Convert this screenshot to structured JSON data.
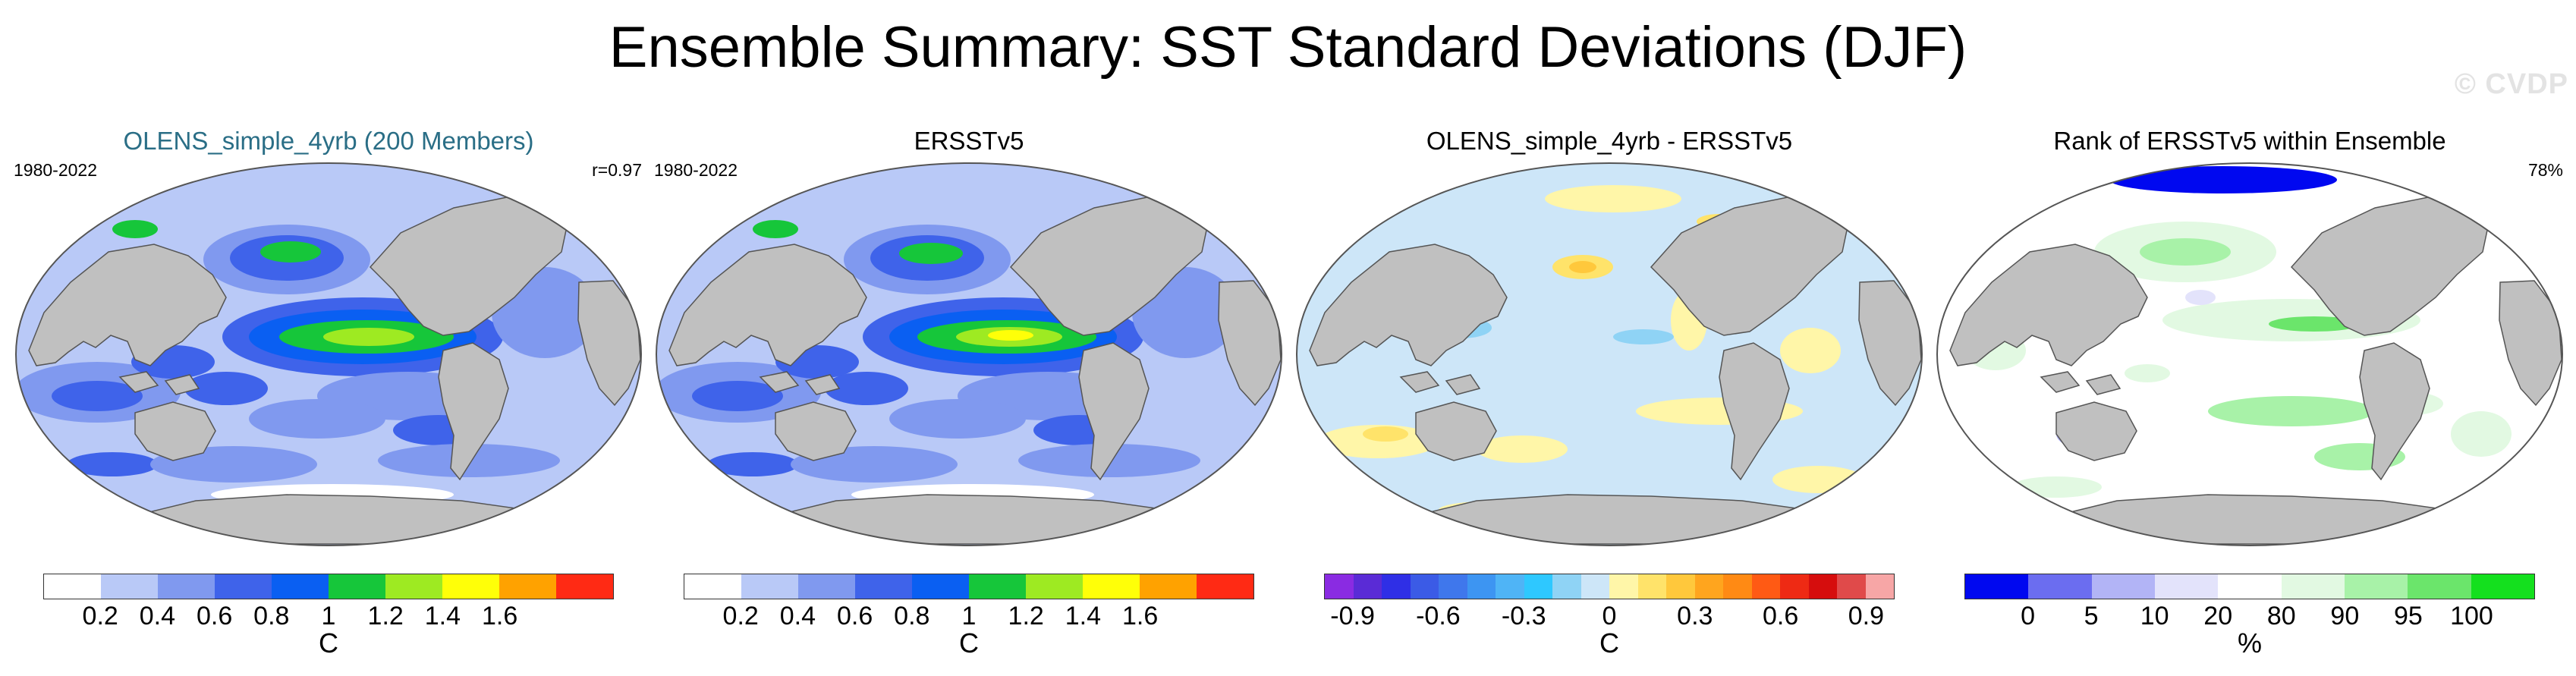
{
  "title": "Ensemble Summary: SST Standard Deviations (DJF)",
  "watermark": "© CVDP",
  "panels": [
    {
      "title": "OLENS_simple_4yrb (200 Members)",
      "title_color": "#2a6e86",
      "left_label": "1980-2022",
      "right_label": "r=0.97",
      "ocean_base": "#b9c9f7",
      "colorbar": {
        "colors": [
          "#ffffff",
          "#b9c9f7",
          "#8099ef",
          "#3f63ea",
          "#0a5ff2",
          "#16c63a",
          "#9eea22",
          "#ffff08",
          "#ffa200",
          "#ff2a14"
        ],
        "ticks": [
          "0.2",
          "0.4",
          "0.6",
          "0.8",
          "1",
          "1.2",
          "1.4",
          "1.6"
        ],
        "unit": "C"
      }
    },
    {
      "title": "ERSSTv5",
      "title_color": "#000000",
      "left_label": "1980-2022",
      "right_label": "",
      "ocean_base": "#b9c9f7",
      "colorbar": {
        "colors": [
          "#ffffff",
          "#b9c9f7",
          "#8099ef",
          "#3f63ea",
          "#0a5ff2",
          "#16c63a",
          "#9eea22",
          "#ffff08",
          "#ffa200",
          "#ff2a14"
        ],
        "ticks": [
          "0.2",
          "0.4",
          "0.6",
          "0.8",
          "1",
          "1.2",
          "1.4",
          "1.6"
        ],
        "unit": "C"
      }
    },
    {
      "title": "OLENS_simple_4yrb - ERSSTv5",
      "title_color": "#000000",
      "left_label": "",
      "right_label": "",
      "ocean_base": "#cde6f8",
      "colorbar": {
        "colors": [
          "#8a2be2",
          "#5a2bd6",
          "#2f2fe6",
          "#3b5be6",
          "#3f77ec",
          "#3d95f2",
          "#4fb4f6",
          "#2ec8ff",
          "#8fd3f5",
          "#cde6f8",
          "#fff6a8",
          "#ffe36a",
          "#ffc83c",
          "#ffa51e",
          "#ff8a14",
          "#ff5a14",
          "#ee2a14",
          "#d60d0d",
          "#e04a4a",
          "#f7a6a6"
        ],
        "ticks": [
          "-0.9",
          "-0.6",
          "-0.3",
          "0",
          "0.3",
          "0.6",
          "0.9"
        ],
        "unit": "C"
      }
    },
    {
      "title": "Rank of ERSSTv5 within Ensemble",
      "title_color": "#000000",
      "left_label": "",
      "right_label": "78%",
      "ocean_base": "#ffffff",
      "colorbar": {
        "colors": [
          "#0008f0",
          "#6b6df0",
          "#b2b4f6",
          "#e3e3fb",
          "#ffffff",
          "#e2f9e2",
          "#a8f2a8",
          "#6be56b",
          "#14e01e"
        ],
        "ticks": [
          "0",
          "5",
          "10",
          "20",
          "80",
          "90",
          "95",
          "100"
        ],
        "unit": "%"
      }
    }
  ]
}
